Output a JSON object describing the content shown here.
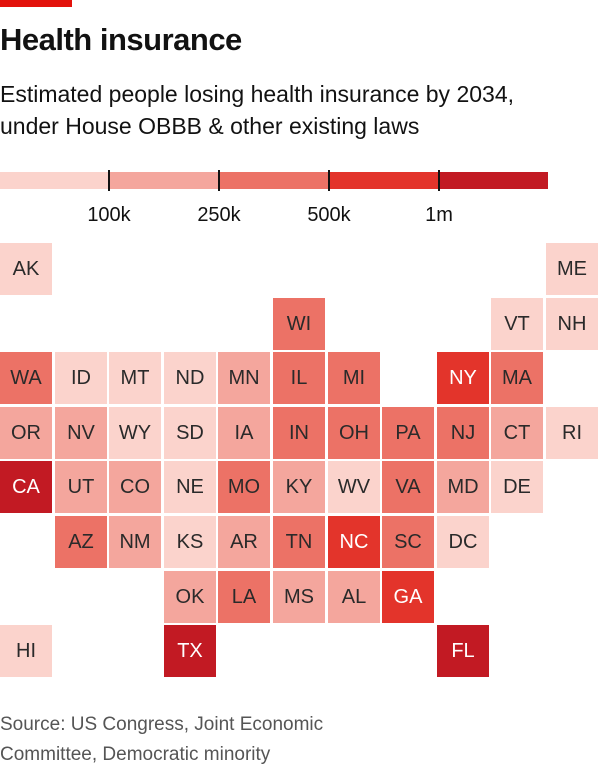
{
  "header": {
    "title": "Health insurance",
    "subtitle_line1": "Estimated people losing health insurance by 2034,",
    "subtitle_line2": "under House OBBB & other existing laws"
  },
  "legend": {
    "ticks": [
      "100k",
      "250k",
      "500k",
      "1m"
    ],
    "colors": [
      "#fbd3cc",
      "#f4a69d",
      "#ec7266",
      "#e3342b",
      "#c21a23"
    ]
  },
  "source": {
    "line1": "Source: US Congress, Joint Economic",
    "line2": "Committee, Democratic minority"
  },
  "chart_data": {
    "type": "heatmap",
    "title": "Health insurance",
    "subtitle": "Estimated people losing health insurance by 2034, under House OBBB & other existing laws",
    "scale_bins": [
      "<100k",
      "100k-250k",
      "250k-500k",
      "500k-1m",
      ">1m"
    ],
    "states": [
      {
        "code": "AK",
        "row": 0,
        "col": 0,
        "bin": 0
      },
      {
        "code": "ME",
        "row": 0,
        "col": 10,
        "bin": 0
      },
      {
        "code": "WI",
        "row": 1,
        "col": 5,
        "bin": 2
      },
      {
        "code": "VT",
        "row": 1,
        "col": 9,
        "bin": 0
      },
      {
        "code": "NH",
        "row": 1,
        "col": 10,
        "bin": 0
      },
      {
        "code": "WA",
        "row": 2,
        "col": 0,
        "bin": 2
      },
      {
        "code": "ID",
        "row": 2,
        "col": 1,
        "bin": 0
      },
      {
        "code": "MT",
        "row": 2,
        "col": 2,
        "bin": 0
      },
      {
        "code": "ND",
        "row": 2,
        "col": 3,
        "bin": 0
      },
      {
        "code": "MN",
        "row": 2,
        "col": 4,
        "bin": 1
      },
      {
        "code": "IL",
        "row": 2,
        "col": 5,
        "bin": 2
      },
      {
        "code": "MI",
        "row": 2,
        "col": 6,
        "bin": 2
      },
      {
        "code": "NY",
        "row": 2,
        "col": 8,
        "bin": 3
      },
      {
        "code": "MA",
        "row": 2,
        "col": 9,
        "bin": 2
      },
      {
        "code": "OR",
        "row": 3,
        "col": 0,
        "bin": 1
      },
      {
        "code": "NV",
        "row": 3,
        "col": 1,
        "bin": 1
      },
      {
        "code": "WY",
        "row": 3,
        "col": 2,
        "bin": 0
      },
      {
        "code": "SD",
        "row": 3,
        "col": 3,
        "bin": 0
      },
      {
        "code": "IA",
        "row": 3,
        "col": 4,
        "bin": 1
      },
      {
        "code": "IN",
        "row": 3,
        "col": 5,
        "bin": 2
      },
      {
        "code": "OH",
        "row": 3,
        "col": 6,
        "bin": 2
      },
      {
        "code": "PA",
        "row": 3,
        "col": 7,
        "bin": 2
      },
      {
        "code": "NJ",
        "row": 3,
        "col": 8,
        "bin": 2
      },
      {
        "code": "CT",
        "row": 3,
        "col": 9,
        "bin": 1
      },
      {
        "code": "RI",
        "row": 3,
        "col": 10,
        "bin": 0
      },
      {
        "code": "CA",
        "row": 4,
        "col": 0,
        "bin": 4
      },
      {
        "code": "UT",
        "row": 4,
        "col": 1,
        "bin": 1
      },
      {
        "code": "CO",
        "row": 4,
        "col": 2,
        "bin": 1
      },
      {
        "code": "NE",
        "row": 4,
        "col": 3,
        "bin": 0
      },
      {
        "code": "MO",
        "row": 4,
        "col": 4,
        "bin": 2
      },
      {
        "code": "KY",
        "row": 4,
        "col": 5,
        "bin": 1
      },
      {
        "code": "WV",
        "row": 4,
        "col": 6,
        "bin": 0
      },
      {
        "code": "VA",
        "row": 4,
        "col": 7,
        "bin": 2
      },
      {
        "code": "MD",
        "row": 4,
        "col": 8,
        "bin": 1
      },
      {
        "code": "DE",
        "row": 4,
        "col": 9,
        "bin": 0
      },
      {
        "code": "AZ",
        "row": 5,
        "col": 1,
        "bin": 2
      },
      {
        "code": "NM",
        "row": 5,
        "col": 2,
        "bin": 1
      },
      {
        "code": "KS",
        "row": 5,
        "col": 3,
        "bin": 0
      },
      {
        "code": "AR",
        "row": 5,
        "col": 4,
        "bin": 1
      },
      {
        "code": "TN",
        "row": 5,
        "col": 5,
        "bin": 2
      },
      {
        "code": "NC",
        "row": 5,
        "col": 6,
        "bin": 3
      },
      {
        "code": "SC",
        "row": 5,
        "col": 7,
        "bin": 2
      },
      {
        "code": "DC",
        "row": 5,
        "col": 8,
        "bin": 0
      },
      {
        "code": "OK",
        "row": 6,
        "col": 3,
        "bin": 1
      },
      {
        "code": "LA",
        "row": 6,
        "col": 4,
        "bin": 2
      },
      {
        "code": "MS",
        "row": 6,
        "col": 5,
        "bin": 1
      },
      {
        "code": "AL",
        "row": 6,
        "col": 6,
        "bin": 1
      },
      {
        "code": "GA",
        "row": 6,
        "col": 7,
        "bin": 3
      },
      {
        "code": "HI",
        "row": 7,
        "col": 0,
        "bin": 0
      },
      {
        "code": "TX",
        "row": 7,
        "col": 3,
        "bin": 4
      },
      {
        "code": "FL",
        "row": 7,
        "col": 8,
        "bin": 4
      }
    ]
  }
}
